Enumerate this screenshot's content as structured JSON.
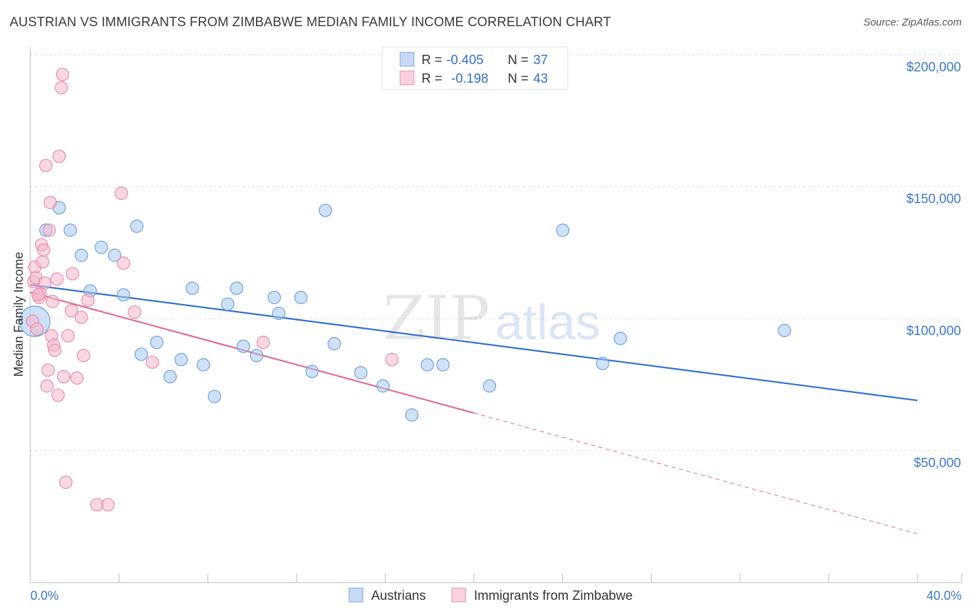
{
  "title": "AUSTRIAN VS IMMIGRANTS FROM ZIMBABWE MEDIAN FAMILY INCOME CORRELATION CHART",
  "source": "Source: ZipAtlas.com",
  "watermark": {
    "zip": "ZIP",
    "atlas": "atlas"
  },
  "legend_box": {
    "rows": [
      {
        "r_label": "R =",
        "r_value": "-0.405",
        "n_label": "N =",
        "n_value": "37",
        "color": "#a8c8f0"
      },
      {
        "r_label": "R =",
        "r_value": "-0.198",
        "n_label": "N =",
        "n_value": "43",
        "color": "#f4b8cc"
      }
    ]
  },
  "chart_data": {
    "type": "scatter",
    "ylabel": "Median Family Income",
    "xlim": [
      0,
      40
    ],
    "ylim": [
      0,
      210000
    ],
    "x_tick_labels": {
      "min": "0.0%",
      "max": "40.0%"
    },
    "y_tick_labels": [
      {
        "value": 50000,
        "label": "$50,000"
      },
      {
        "value": 100000,
        "label": "$100,000"
      },
      {
        "value": 150000,
        "label": "$150,000"
      },
      {
        "value": 200000,
        "label": "$200,000"
      }
    ],
    "grid": true,
    "legend_position": "bottom",
    "series": [
      {
        "name": "Austrians",
        "color": "#a8c8f0",
        "stroke": "#6a9fe0",
        "line_color": "#2f6fd0",
        "trend": {
          "x0": 0,
          "y0": 112800,
          "x1": 40,
          "y1": 69000,
          "dashed_from": null
        },
        "points": [
          [
            0.2,
            99000
          ],
          [
            0.7,
            133500
          ],
          [
            1.3,
            142000
          ],
          [
            1.8,
            133500
          ],
          [
            2.3,
            124000
          ],
          [
            2.7,
            110500
          ],
          [
            3.2,
            127000
          ],
          [
            3.8,
            124000
          ],
          [
            4.2,
            109000
          ],
          [
            4.8,
            135000
          ],
          [
            5.0,
            86500
          ],
          [
            5.7,
            91000
          ],
          [
            6.3,
            78000
          ],
          [
            6.8,
            84500
          ],
          [
            7.3,
            111500
          ],
          [
            7.8,
            82500
          ],
          [
            8.3,
            70500
          ],
          [
            8.9,
            105500
          ],
          [
            9.3,
            111500
          ],
          [
            9.6,
            89500
          ],
          [
            10.2,
            86000
          ],
          [
            11.0,
            108000
          ],
          [
            11.2,
            102000
          ],
          [
            12.2,
            108000
          ],
          [
            12.7,
            80000
          ],
          [
            13.3,
            141000
          ],
          [
            13.7,
            90500
          ],
          [
            14.9,
            79500
          ],
          [
            15.9,
            74500
          ],
          [
            17.9,
            82500
          ],
          [
            18.6,
            82500
          ],
          [
            17.2,
            63500
          ],
          [
            20.7,
            74500
          ],
          [
            24.0,
            133500
          ],
          [
            25.8,
            83000
          ],
          [
            26.6,
            92500
          ],
          [
            34.0,
            95500
          ]
        ]
      },
      {
        "name": "Immigrants from Zimbabwe",
        "color": "#f4b8cc",
        "stroke": "#e88aa8",
        "line_color": "#e06a92",
        "trend": {
          "x0": 0,
          "y0": 110000,
          "x1": 40,
          "y1": 18500,
          "solid_until": 20
        },
        "points": [
          [
            0.1,
            99000
          ],
          [
            0.15,
            114000
          ],
          [
            0.2,
            119500
          ],
          [
            0.25,
            115500
          ],
          [
            0.3,
            96000
          ],
          [
            0.4,
            108000
          ],
          [
            0.45,
            109500
          ],
          [
            0.5,
            128000
          ],
          [
            0.55,
            121500
          ],
          [
            0.6,
            126000
          ],
          [
            0.65,
            113500
          ],
          [
            0.7,
            158000
          ],
          [
            0.75,
            74500
          ],
          [
            0.8,
            80500
          ],
          [
            0.85,
            133500
          ],
          [
            0.9,
            144000
          ],
          [
            0.95,
            93500
          ],
          [
            1.0,
            106500
          ],
          [
            1.05,
            90000
          ],
          [
            1.1,
            88000
          ],
          [
            1.2,
            115000
          ],
          [
            1.25,
            71000
          ],
          [
            1.3,
            161500
          ],
          [
            1.4,
            187500
          ],
          [
            1.45,
            192500
          ],
          [
            1.5,
            78000
          ],
          [
            1.6,
            38000
          ],
          [
            1.7,
            93500
          ],
          [
            1.9,
            117000
          ],
          [
            1.85,
            103000
          ],
          [
            2.1,
            77500
          ],
          [
            2.3,
            100500
          ],
          [
            2.4,
            86000
          ],
          [
            2.6,
            107000
          ],
          [
            3.0,
            29500
          ],
          [
            3.5,
            29500
          ],
          [
            4.1,
            147500
          ],
          [
            4.2,
            121000
          ],
          [
            4.7,
            102500
          ],
          [
            5.5,
            83500
          ],
          [
            10.5,
            91000
          ],
          [
            16.3,
            84500
          ],
          [
            0.35,
            109000
          ]
        ]
      }
    ]
  }
}
